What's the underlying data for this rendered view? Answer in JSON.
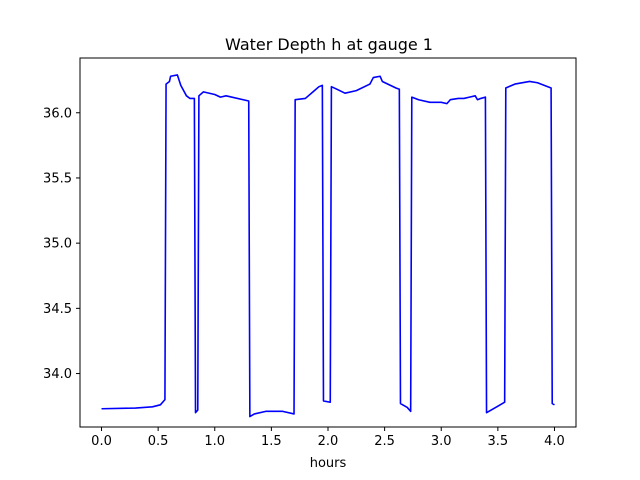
{
  "chart_data": {
    "type": "line",
    "title": "Water Depth h at gauge 1",
    "xlabel": "hours",
    "ylabel": "",
    "xlim": [
      -0.19,
      4.19
    ],
    "ylim": [
      33.59,
      36.42
    ],
    "xticks": [
      0.0,
      0.5,
      1.0,
      1.5,
      2.0,
      2.5,
      3.0,
      3.5,
      4.0
    ],
    "xtick_labels": [
      "0.0",
      "0.5",
      "1.0",
      "1.5",
      "2.0",
      "2.5",
      "3.0",
      "3.5",
      "4.0"
    ],
    "yticks": [
      34.0,
      34.5,
      35.0,
      35.5,
      36.0
    ],
    "ytick_labels": [
      "34.0",
      "34.5",
      "35.0",
      "35.5",
      "36.0"
    ],
    "grid": false,
    "series": [
      {
        "name": "",
        "color": "#0000ff",
        "points": [
          [
            0.0,
            33.73
          ],
          [
            0.3,
            33.735
          ],
          [
            0.45,
            33.745
          ],
          [
            0.52,
            33.76
          ],
          [
            0.56,
            33.8
          ],
          [
            0.57,
            36.22
          ],
          [
            0.6,
            36.24
          ],
          [
            0.61,
            36.28
          ],
          [
            0.67,
            36.29
          ],
          [
            0.7,
            36.21
          ],
          [
            0.75,
            36.13
          ],
          [
            0.78,
            36.11
          ],
          [
            0.82,
            36.11
          ],
          [
            0.83,
            33.7
          ],
          [
            0.85,
            33.72
          ],
          [
            0.86,
            36.13
          ],
          [
            0.9,
            36.16
          ],
          [
            1.0,
            36.14
          ],
          [
            1.05,
            36.12
          ],
          [
            1.1,
            36.13
          ],
          [
            1.3,
            36.09
          ],
          [
            1.31,
            33.67
          ],
          [
            1.35,
            33.69
          ],
          [
            1.45,
            33.71
          ],
          [
            1.6,
            33.71
          ],
          [
            1.7,
            33.69
          ],
          [
            1.71,
            36.1
          ],
          [
            1.8,
            36.11
          ],
          [
            1.88,
            36.17
          ],
          [
            1.92,
            36.2
          ],
          [
            1.95,
            36.21
          ],
          [
            1.96,
            33.79
          ],
          [
            2.02,
            33.78
          ],
          [
            2.03,
            36.2
          ],
          [
            2.08,
            36.18
          ],
          [
            2.15,
            36.15
          ],
          [
            2.25,
            36.17
          ],
          [
            2.37,
            36.22
          ],
          [
            2.4,
            36.27
          ],
          [
            2.46,
            36.28
          ],
          [
            2.48,
            36.24
          ],
          [
            2.6,
            36.19
          ],
          [
            2.63,
            36.18
          ],
          [
            2.64,
            33.77
          ],
          [
            2.7,
            33.74
          ],
          [
            2.73,
            33.71
          ],
          [
            2.74,
            36.12
          ],
          [
            2.8,
            36.1
          ],
          [
            2.9,
            36.08
          ],
          [
            3.0,
            36.08
          ],
          [
            3.05,
            36.07
          ],
          [
            3.08,
            36.1
          ],
          [
            3.15,
            36.11
          ],
          [
            3.2,
            36.11
          ],
          [
            3.25,
            36.12
          ],
          [
            3.3,
            36.13
          ],
          [
            3.32,
            36.1
          ],
          [
            3.35,
            36.11
          ],
          [
            3.39,
            36.12
          ],
          [
            3.4,
            33.7
          ],
          [
            3.5,
            33.75
          ],
          [
            3.56,
            33.78
          ],
          [
            3.57,
            36.19
          ],
          [
            3.65,
            36.22
          ],
          [
            3.78,
            36.24
          ],
          [
            3.85,
            36.23
          ],
          [
            3.97,
            36.19
          ],
          [
            3.98,
            33.77
          ],
          [
            4.0,
            33.76
          ]
        ]
      }
    ]
  }
}
